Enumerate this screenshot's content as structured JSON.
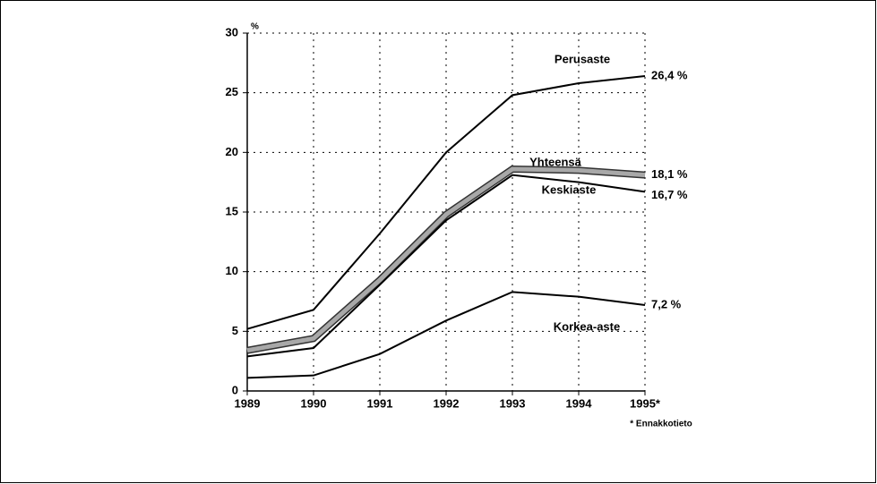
{
  "chart_data": {
    "type": "line",
    "y_label": "%",
    "footnote": "* Ennakkotieto",
    "categories": [
      "1989",
      "1990",
      "1991",
      "1992",
      "1993",
      "1994",
      "1995*"
    ],
    "ylim": [
      0,
      30
    ],
    "yticks": [
      0,
      5,
      10,
      15,
      20,
      25,
      30
    ],
    "grid": true,
    "series": [
      {
        "name": "Perusaste",
        "color": "#000000",
        "values": [
          5.2,
          6.8,
          13.2,
          20.0,
          24.8,
          25.8,
          26.4
        ],
        "value_labels": [
          null,
          null,
          null,
          null,
          null,
          null,
          "26,4 %"
        ]
      },
      {
        "name": "Yhteensä",
        "color": "#a8a8a8",
        "values": [
          3.4,
          4.4,
          9.3,
          14.8,
          18.6,
          18.5,
          18.1
        ],
        "value_labels": [
          null,
          null,
          null,
          null,
          null,
          null,
          "18,1 %"
        ]
      },
      {
        "name": "Keskiaste",
        "color": "#000000",
        "values": [
          2.9,
          3.6,
          8.9,
          14.3,
          18.1,
          17.5,
          16.7
        ],
        "value_labels": [
          null,
          null,
          null,
          null,
          null,
          null,
          "16,7 %"
        ]
      },
      {
        "name": "Korkea-aste",
        "color": "#000000",
        "values": [
          1.1,
          1.3,
          3.1,
          5.9,
          8.3,
          7.9,
          7.2
        ],
        "value_labels": [
          null,
          null,
          null,
          null,
          null,
          null,
          "7,2 %"
        ]
      }
    ]
  }
}
